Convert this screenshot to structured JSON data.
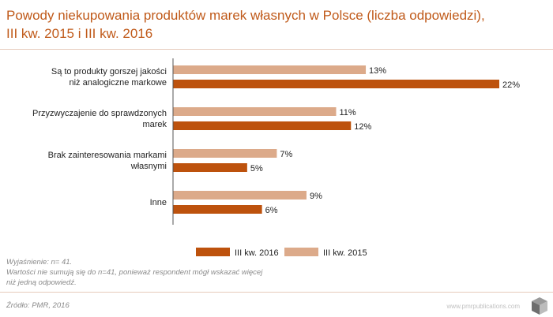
{
  "header": {
    "title_line1": "Powody niekupowania produktów marek własnych w Polsce (liczba odpowiedzi),",
    "title_line2": "III kw. 2015 i III kw. 2016"
  },
  "colors": {
    "title": "#c05a1a",
    "series_2016": "#bd520d",
    "series_2015": "#dcaa8a",
    "axis": "#555555",
    "label": "#222222"
  },
  "chart_data": {
    "type": "bar",
    "orientation": "horizontal",
    "categories": [
      [
        "Są to produkty gorszej jakości",
        "niż analogiczne markowe"
      ],
      [
        "Przyzwyczajenie do sprawdzonych",
        "marek"
      ],
      [
        "Brak zainteresowania markami",
        "własnymi"
      ],
      [
        "Inne"
      ]
    ],
    "series": [
      {
        "name": "III kw. 2015",
        "values": [
          13,
          11,
          7,
          9
        ]
      },
      {
        "name": "III kw. 2016",
        "values": [
          22,
          12,
          5,
          6
        ]
      }
    ],
    "value_suffix": "%",
    "xlim": [
      0,
      22
    ],
    "grid": false,
    "legend": {
      "placement": "bottom-center",
      "order": [
        "III kw. 2016",
        "III kw. 2015"
      ]
    }
  },
  "notes": {
    "line1": "Wyjaśnienie: n= 41.",
    "line2": "Wartości nie sumują się do n=41, ponieważ respondent mógł wskazać więcej",
    "line3": "niż jedną odpowiedź."
  },
  "footer": {
    "source": "Źródło: PMR, 2016",
    "website": "www.pmrpublications.com",
    "logo_icon": "pmr-cube-logo-icon"
  }
}
